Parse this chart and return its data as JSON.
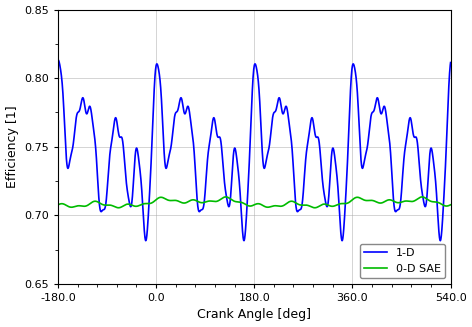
{
  "title": "",
  "xlabel": "Crank Angle [deg]",
  "ylabel": "Efficiency [1]",
  "xlim": [
    -180.0,
    540.0
  ],
  "ylim": [
    0.65,
    0.85
  ],
  "xticks": [
    -180.0,
    0.0,
    180.0,
    360.0,
    540.0
  ],
  "yticks": [
    0.65,
    0.7,
    0.75,
    0.8,
    0.85
  ],
  "legend_1d": "1-D",
  "legend_0d": "0-D SAE",
  "color_1d": "#0000FF",
  "color_0d": "#00BB00",
  "linewidth_1d": 1.2,
  "linewidth_0d": 1.2,
  "background_color": "#FFFFFF",
  "grid_color": "#AAAAAA"
}
